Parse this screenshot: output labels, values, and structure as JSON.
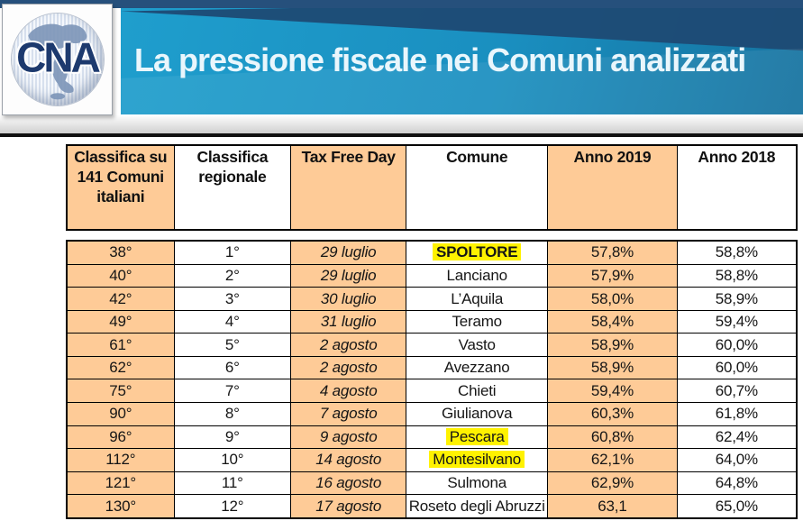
{
  "header": {
    "logo_text": "CNA",
    "title": "La pressione fiscale nei Comuni analizzati"
  },
  "table": {
    "columns": [
      {
        "id": "rank_italy",
        "label": "Classifica su 141 Comuni italiani"
      },
      {
        "id": "rank_region",
        "label": "Classifica regionale"
      },
      {
        "id": "tax_free_day",
        "label": "Tax Free Day"
      },
      {
        "id": "comune",
        "label": "Comune"
      },
      {
        "id": "anno_2019",
        "label": "Anno 2019"
      },
      {
        "id": "anno_2018",
        "label": "Anno 2018"
      }
    ],
    "column_widths_pct": [
      14.7,
      16.0,
      15.8,
      19.4,
      17.7,
      16.4
    ],
    "rows": [
      {
        "rank_italy": "38°",
        "rank_region": "1°",
        "tax_free_day": "29 luglio",
        "comune": "SPOLTORE",
        "anno_2019": "57,8%",
        "anno_2018": "58,8%",
        "comune_highlight": true,
        "comune_bold": true
      },
      {
        "rank_italy": "40°",
        "rank_region": "2°",
        "tax_free_day": "29 luglio",
        "comune": "Lanciano",
        "anno_2019": "57,9%",
        "anno_2018": "58,8%",
        "comune_highlight": false,
        "comune_bold": false
      },
      {
        "rank_italy": "42°",
        "rank_region": "3°",
        "tax_free_day": "30 luglio",
        "comune": "L’Aquila",
        "anno_2019": "58,0%",
        "anno_2018": "58,9%",
        "comune_highlight": false,
        "comune_bold": false
      },
      {
        "rank_italy": "49°",
        "rank_region": "4°",
        "tax_free_day": "31 luglio",
        "comune": "Teramo",
        "anno_2019": "58,4%",
        "anno_2018": "59,4%",
        "comune_highlight": false,
        "comune_bold": false
      },
      {
        "rank_italy": "61°",
        "rank_region": "5°",
        "tax_free_day": "2 agosto",
        "comune": "Vasto",
        "anno_2019": "58,9%",
        "anno_2018": "60,0%",
        "comune_highlight": false,
        "comune_bold": false
      },
      {
        "rank_italy": "62°",
        "rank_region": "6°",
        "tax_free_day": "2 agosto",
        "comune": "Avezzano",
        "anno_2019": "58,9%",
        "anno_2018": "60,0%",
        "comune_highlight": false,
        "comune_bold": false
      },
      {
        "rank_italy": "75°",
        "rank_region": "7°",
        "tax_free_day": "4 agosto",
        "comune": "Chieti",
        "anno_2019": "59,4%",
        "anno_2018": "60,7%",
        "comune_highlight": false,
        "comune_bold": false
      },
      {
        "rank_italy": "90°",
        "rank_region": "8°",
        "tax_free_day": "7 agosto",
        "comune": "Giulianova",
        "anno_2019": "60,3%",
        "anno_2018": "61,8%",
        "comune_highlight": false,
        "comune_bold": false
      },
      {
        "rank_italy": "96°",
        "rank_region": "9°",
        "tax_free_day": "9 agosto",
        "comune": "Pescara",
        "anno_2019": "60,8%",
        "anno_2018": "62,4%",
        "comune_highlight": true,
        "comune_bold": false
      },
      {
        "rank_italy": "112°",
        "rank_region": "10°",
        "tax_free_day": "14 agosto",
        "comune": "Montesilvano",
        "anno_2019": "62,1%",
        "anno_2018": "64,0%",
        "comune_highlight": true,
        "comune_bold": false
      },
      {
        "rank_italy": "121°",
        "rank_region": "11°",
        "tax_free_day": "16 agosto",
        "comune": "Sulmona",
        "anno_2019": "62,9%",
        "anno_2018": "64,8%",
        "comune_highlight": false,
        "comune_bold": false
      },
      {
        "rank_italy": "130°",
        "rank_region": "12°",
        "tax_free_day": "17 agosto",
        "comune": "Roseto degli Abruzzi",
        "anno_2019": "63,1",
        "anno_2018": "65,0%",
        "comune_highlight": false,
        "comune_bold": false
      }
    ]
  },
  "colors": {
    "cell_orange": "#FECB97",
    "highlight_yellow": "#FFF200",
    "banner_blue": "#1A8FC0",
    "top_bar_navy": "#26507C",
    "logo_navy": "#1D3A6E"
  }
}
